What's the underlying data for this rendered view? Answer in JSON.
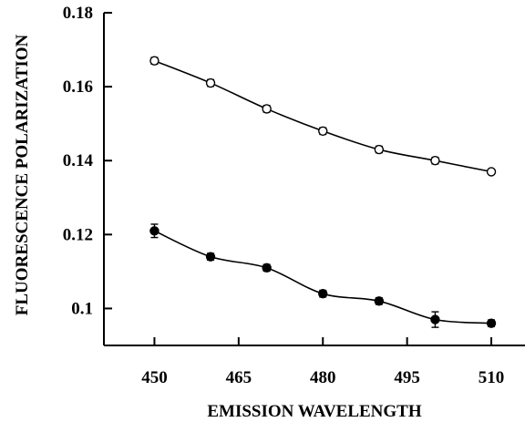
{
  "chart_data": {
    "type": "scatter",
    "title": "",
    "xlabel": "EMISSION  WAVELENGTH",
    "ylabel": "FLUORESCENCE POLARIZATION",
    "xlim": [
      441,
      516
    ],
    "ylim": [
      0.09,
      0.18
    ],
    "x_ticks": [
      450,
      465,
      480,
      495,
      510
    ],
    "x_tick_labels": [
      "450",
      "465",
      "480",
      "495",
      "510"
    ],
    "y_ticks": [
      0.1,
      0.12,
      0.14,
      0.16,
      0.18
    ],
    "y_tick_labels": [
      "0.1",
      "0.12",
      "0.14",
      "0.16",
      "0.18"
    ],
    "grid": false,
    "legend": "none",
    "series": [
      {
        "marker": "open-circle",
        "color": "#000000",
        "x": [
          450,
          460,
          470,
          480,
          490,
          500,
          510
        ],
        "y": [
          0.167,
          0.161,
          0.154,
          0.148,
          0.143,
          0.14,
          0.137
        ],
        "error": [
          0.0009,
          0.0009,
          0.0009,
          0.0009,
          0.0009,
          0.0009,
          0.0005
        ]
      },
      {
        "marker": "filled-circle",
        "color": "#000000",
        "x": [
          450,
          460,
          470,
          480,
          490,
          500,
          510
        ],
        "y": [
          0.121,
          0.114,
          0.111,
          0.104,
          0.102,
          0.097,
          0.096
        ],
        "error": [
          0.0018,
          0.0009,
          0.0009,
          0.0009,
          0.0009,
          0.0021,
          0.0009
        ]
      }
    ]
  }
}
